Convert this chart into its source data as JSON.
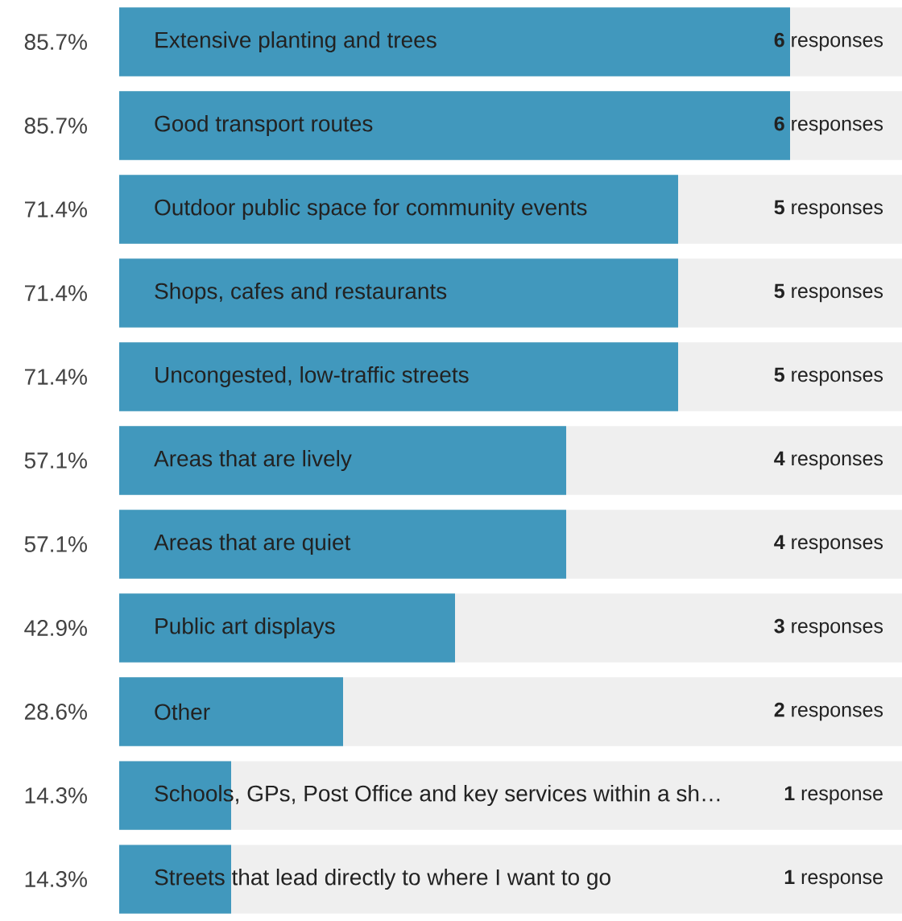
{
  "chart_data": {
    "type": "bar",
    "orientation": "horizontal",
    "categories": [
      "Extensive planting and trees",
      "Good transport routes",
      "Outdoor public space for community events",
      "Shops, cafes and restaurants",
      "Uncongested, low-traffic streets",
      "Areas that are lively",
      "Areas that are quiet",
      "Public art displays",
      "Other",
      "Schools, GPs, Post Office and key services within a sh…",
      "Streets that lead directly to where I want to go"
    ],
    "values": [
      85.7,
      85.7,
      71.4,
      71.4,
      71.4,
      57.1,
      57.1,
      42.9,
      28.6,
      14.3,
      14.3
    ],
    "value_labels": [
      "85.7%",
      "85.7%",
      "71.4%",
      "71.4%",
      "71.4%",
      "57.1%",
      "57.1%",
      "42.9%",
      "28.6%",
      "14.3%",
      "14.3%"
    ],
    "color": "#4198bd",
    "xlim": [
      0,
      100
    ],
    "annotations": [
      "**6** responses",
      "**6** responses",
      "**5** responses",
      "**5** responses",
      "**5** responses",
      "**4** responses",
      "**4** responses",
      "**3** responses",
      "**2** responses",
      "**1** response",
      "**1** response"
    ]
  }
}
